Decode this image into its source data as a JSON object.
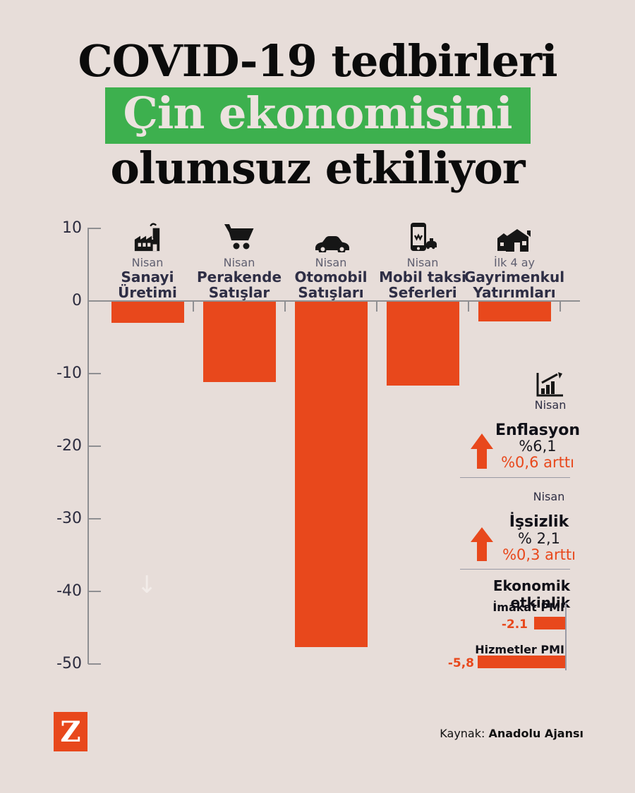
{
  "title": {
    "line1": "COVID-19 tedbirleri",
    "line2": "Çin ekonomisini",
    "line3": "olumsuz etkiliyor"
  },
  "chart_data": [
    {
      "type": "bar",
      "categories": [
        "Sanayi Üretimi",
        "Perakende Satışlar",
        "Otomobil Satışları",
        "Mobil taksi Seferleri",
        "Gayrimenkul Yatırımları"
      ],
      "periods": [
        "Nisan",
        "Nisan",
        "Nisan",
        "Nisan",
        "İlk 4 ay"
      ],
      "icons": [
        "factory-icon",
        "shopping-cart-icon",
        "car-icon",
        "phone-taxi-icon",
        "houses-icon"
      ],
      "values": [
        -2.9,
        -11.1,
        -47.6,
        -11.6,
        -2.7
      ],
      "y_ticks": [
        10,
        0,
        -10,
        -20,
        -30,
        -40,
        -50
      ],
      "y_tick_labels": [
        "10",
        "0",
        "-10",
        "-20",
        "-30",
        "-40",
        "-50"
      ],
      "ylim": [
        -50,
        10
      ],
      "grid": false,
      "legend_position": "none",
      "bar_color": "#e8481c"
    },
    {
      "type": "bar",
      "title": "Ekonomik etkinlik",
      "orientation": "horizontal",
      "categories": [
        "İmakat PMI",
        "Hizmetler PMI"
      ],
      "values": [
        -2.1,
        -5.8
      ],
      "value_labels": [
        "-2.1",
        "-5,8"
      ],
      "bar_color": "#e8481c"
    }
  ],
  "side_stats": [
    {
      "period": "Nisan",
      "label": "Enflasyon",
      "value": "%6,1",
      "change": "%0,6 arttı",
      "icon": "chart-rise-icon"
    },
    {
      "period": "Nisan",
      "label": "İşsizlik",
      "value": "% 2,1",
      "change": "%0,3 arttı"
    }
  ],
  "footer": {
    "logo_letter": "Z",
    "source_label": "Kaynak: ",
    "source_name": "Anadolu Ajansı"
  },
  "colors": {
    "background": "#e7ddd9",
    "accent_orange": "#e8481c",
    "highlight_green": "#3db04e",
    "text_dark": "#2e2e44",
    "text_muted": "#5f5f70",
    "axis_gray": "#8f8f92"
  }
}
